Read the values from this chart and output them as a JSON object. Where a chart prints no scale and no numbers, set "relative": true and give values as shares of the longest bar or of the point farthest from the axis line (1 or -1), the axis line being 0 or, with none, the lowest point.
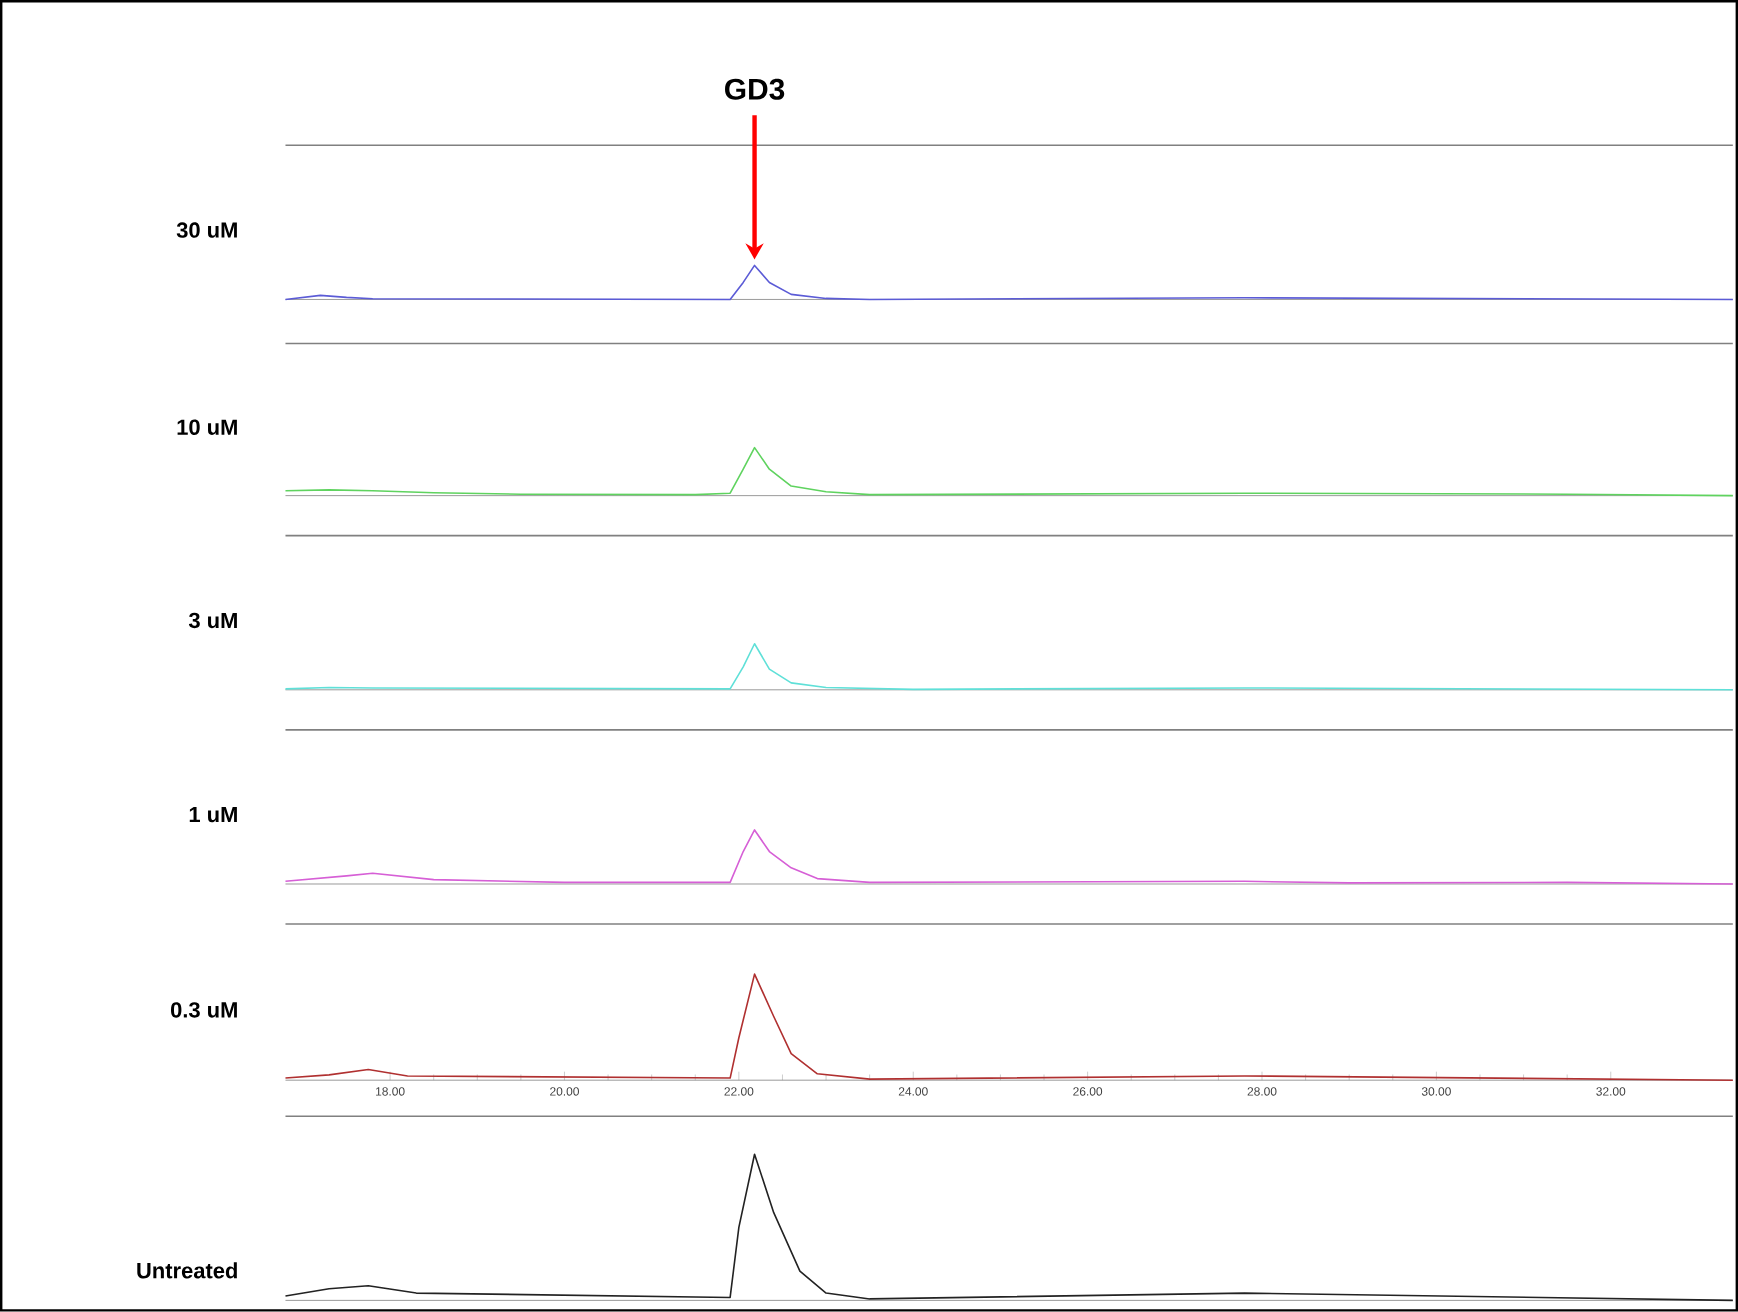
{
  "chart_data": [
    {
      "type": "line",
      "relative": true,
      "ylabel": "30 uM",
      "xlim": [
        16.8,
        33.4
      ],
      "tick_labels": false,
      "annotations": [
        {
          "text": "GD3",
          "x": 22.18,
          "y": 1
        }
      ],
      "x": [
        16.8,
        17.2,
        17.5,
        17.8,
        21.9,
        22.05,
        22.18,
        22.35,
        22.6,
        23.0,
        23.5,
        27.8,
        33.4
      ],
      "series": [
        {
          "color": "#5b5bd6",
          "values": [
            0,
            0.12,
            0.06,
            0.02,
            0,
            0.5,
            1,
            0.5,
            0.15,
            0.03,
            0,
            0.05,
            0
          ]
        }
      ]
    },
    {
      "type": "line",
      "relative": true,
      "ylabel": "10 uM",
      "xlim": [
        16.8,
        33.4
      ],
      "tick_labels": false,
      "x": [
        16.8,
        17.3,
        17.8,
        18.5,
        19.5,
        21.5,
        21.9,
        22.05,
        22.18,
        22.35,
        22.6,
        23.0,
        23.5,
        27.8,
        31.5,
        33.4
      ],
      "series": [
        {
          "color": "#5fd35f",
          "values": [
            0.1,
            0.12,
            0.1,
            0.06,
            0.03,
            0.02,
            0.05,
            0.55,
            1,
            0.55,
            0.2,
            0.08,
            0.02,
            0.05,
            0.03,
            0
          ]
        }
      ]
    },
    {
      "type": "line",
      "relative": true,
      "ylabel": "3 uM",
      "xlim": [
        16.8,
        33.4
      ],
      "tick_labels": false,
      "x": [
        16.8,
        17.3,
        17.8,
        21.9,
        22.05,
        22.18,
        22.35,
        22.6,
        23.0,
        24.0,
        27.8,
        33.4
      ],
      "series": [
        {
          "color": "#5fe0d8",
          "values": [
            0.02,
            0.05,
            0.04,
            0.02,
            0.5,
            1,
            0.45,
            0.15,
            0.05,
            0.01,
            0.04,
            0
          ]
        }
      ]
    },
    {
      "type": "line",
      "relative": true,
      "ylabel": "1 uM",
      "xlim": [
        16.8,
        33.4
      ],
      "tick_labels": false,
      "x": [
        16.8,
        17.5,
        17.8,
        18.5,
        20.0,
        21.9,
        22.05,
        22.18,
        22.35,
        22.6,
        22.9,
        23.5,
        27.8,
        29.0,
        31.5,
        33.4
      ],
      "series": [
        {
          "color": "#d65fd6",
          "values": [
            0.05,
            0.15,
            0.2,
            0.08,
            0.03,
            0.03,
            0.6,
            1,
            0.6,
            0.3,
            0.1,
            0.03,
            0.05,
            0.02,
            0.03,
            0
          ]
        }
      ]
    },
    {
      "type": "line",
      "relative": true,
      "ylabel": "0.3 uM",
      "xlim": [
        16.8,
        33.4
      ],
      "tick_labels": "x",
      "xticks": [
        {
          "value": 18,
          "label": "18.00"
        },
        {
          "value": 20,
          "label": "20.00"
        },
        {
          "value": 22,
          "label": "22.00"
        },
        {
          "value": 24,
          "label": "24.00"
        },
        {
          "value": 26,
          "label": "26.00"
        },
        {
          "value": 28,
          "label": "28.00"
        },
        {
          "value": 30,
          "label": "30.00"
        },
        {
          "value": 32,
          "label": "32.00"
        }
      ],
      "x": [
        16.8,
        17.3,
        17.75,
        18.2,
        21.9,
        22.0,
        22.18,
        22.4,
        22.6,
        22.9,
        23.5,
        27.8,
        33.4
      ],
      "series": [
        {
          "color": "#b03030",
          "values": [
            0.02,
            0.05,
            0.1,
            0.04,
            0.02,
            0.4,
            1,
            0.6,
            0.25,
            0.06,
            0.01,
            0.04,
            0
          ]
        }
      ]
    },
    {
      "type": "line",
      "relative": true,
      "ylabel": "Untreated",
      "xlim": [
        16.8,
        33.4
      ],
      "tick_labels": false,
      "x": [
        16.8,
        17.3,
        17.75,
        18.3,
        21.9,
        22.0,
        22.18,
        22.4,
        22.7,
        23.0,
        23.5,
        27.8,
        33.4
      ],
      "series": [
        {
          "color": "#222222",
          "values": [
            0.03,
            0.08,
            0.1,
            0.05,
            0.02,
            0.5,
            1,
            0.6,
            0.2,
            0.05,
            0.01,
            0.05,
            0
          ]
        }
      ]
    }
  ]
}
